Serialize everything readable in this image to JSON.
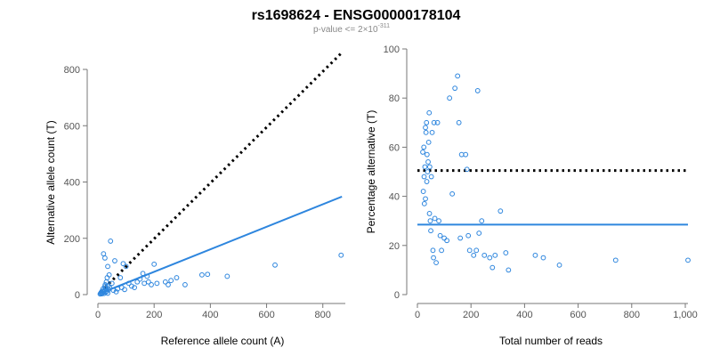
{
  "header": {
    "title": "rs1698624 - ENSG00000178104",
    "subtitle_prefix": "p-value <= 2×10",
    "subtitle_exponent": "-311"
  },
  "chart_data": [
    {
      "type": "scatter",
      "xlabel": "Reference allele count (A)",
      "ylabel": "Alternative allele count (T)",
      "xlim": [
        0,
        880
      ],
      "ylim": [
        0,
        800
      ],
      "xticks": [
        {
          "v": 0,
          "label": "0"
        },
        {
          "v": 200,
          "label": "200"
        },
        {
          "v": 400,
          "label": "400"
        },
        {
          "v": 600,
          "label": "600"
        },
        {
          "v": 800,
          "label": "800"
        }
      ],
      "yticks": [
        {
          "v": 0,
          "label": "0"
        },
        {
          "v": 200,
          "label": "200"
        },
        {
          "v": 400,
          "label": "400"
        },
        {
          "v": 600,
          "label": "600"
        },
        {
          "v": 800,
          "label": "800"
        }
      ],
      "grid": false,
      "colors": {
        "points": "#2e86de",
        "fit": "#2e86de",
        "reference": "#000000"
      },
      "reference_line": {
        "style": "dotted",
        "x": [
          10,
          868
        ],
        "y": [
          10,
          860
        ]
      },
      "fit_line": {
        "style": "solid",
        "x": [
          10,
          868
        ],
        "y": [
          5,
          348
        ]
      },
      "points": [
        {
          "x": 8,
          "y": 2
        },
        {
          "x": 10,
          "y": 5
        },
        {
          "x": 12,
          "y": 8
        },
        {
          "x": 14,
          "y": 3
        },
        {
          "x": 15,
          "y": 12
        },
        {
          "x": 16,
          "y": 6
        },
        {
          "x": 18,
          "y": 20
        },
        {
          "x": 20,
          "y": 10
        },
        {
          "x": 22,
          "y": 4
        },
        {
          "x": 24,
          "y": 28
        },
        {
          "x": 25,
          "y": 15
        },
        {
          "x": 26,
          "y": 35
        },
        {
          "x": 27,
          "y": 8
        },
        {
          "x": 28,
          "y": 22
        },
        {
          "x": 30,
          "y": 45
        },
        {
          "x": 32,
          "y": 12
        },
        {
          "x": 33,
          "y": 60
        },
        {
          "x": 35,
          "y": 5
        },
        {
          "x": 36,
          "y": 30
        },
        {
          "x": 38,
          "y": 18
        },
        {
          "x": 40,
          "y": 70
        },
        {
          "x": 42,
          "y": 25
        },
        {
          "x": 20,
          "y": 145
        },
        {
          "x": 25,
          "y": 130
        },
        {
          "x": 35,
          "y": 100
        },
        {
          "x": 45,
          "y": 190
        },
        {
          "x": 60,
          "y": 120
        },
        {
          "x": 90,
          "y": 110
        },
        {
          "x": 100,
          "y": 100
        },
        {
          "x": 50,
          "y": 40
        },
        {
          "x": 55,
          "y": 15
        },
        {
          "x": 65,
          "y": 10
        },
        {
          "x": 70,
          "y": 20
        },
        {
          "x": 80,
          "y": 60
        },
        {
          "x": 85,
          "y": 25
        },
        {
          "x": 95,
          "y": 18
        },
        {
          "x": 110,
          "y": 40
        },
        {
          "x": 120,
          "y": 30
        },
        {
          "x": 130,
          "y": 25
        },
        {
          "x": 140,
          "y": 45
        },
        {
          "x": 150,
          "y": 55
        },
        {
          "x": 160,
          "y": 75
        },
        {
          "x": 165,
          "y": 40
        },
        {
          "x": 175,
          "y": 65
        },
        {
          "x": 180,
          "y": 45
        },
        {
          "x": 190,
          "y": 35
        },
        {
          "x": 200,
          "y": 108
        },
        {
          "x": 210,
          "y": 40
        },
        {
          "x": 240,
          "y": 45
        },
        {
          "x": 250,
          "y": 35
        },
        {
          "x": 260,
          "y": 50
        },
        {
          "x": 280,
          "y": 60
        },
        {
          "x": 310,
          "y": 35
        },
        {
          "x": 370,
          "y": 70
        },
        {
          "x": 390,
          "y": 72
        },
        {
          "x": 460,
          "y": 65
        },
        {
          "x": 630,
          "y": 105
        },
        {
          "x": 865,
          "y": 140
        }
      ]
    },
    {
      "type": "scatter",
      "xlabel": "Total number of reads",
      "ylabel": "Percentage alternative (T)",
      "xlim": [
        0,
        1010
      ],
      "ylim": [
        0,
        100
      ],
      "xticks": [
        {
          "v": 0,
          "label": "0"
        },
        {
          "v": 200,
          "label": "200"
        },
        {
          "v": 400,
          "label": "400"
        },
        {
          "v": 600,
          "label": "600"
        },
        {
          "v": 800,
          "label": "800"
        },
        {
          "v": 1000,
          "label": "1,000"
        }
      ],
      "yticks": [
        {
          "v": 0,
          "label": "0"
        },
        {
          "v": 20,
          "label": "20"
        },
        {
          "v": 40,
          "label": "40"
        },
        {
          "v": 60,
          "label": "60"
        },
        {
          "v": 80,
          "label": "80"
        },
        {
          "v": 100,
          "label": "100"
        }
      ],
      "grid": false,
      "colors": {
        "points": "#2e86de",
        "fit": "#2e86de",
        "reference": "#000000"
      },
      "reference_line": {
        "style": "dotted",
        "x": [
          0,
          1010
        ],
        "y": [
          50.5,
          50.5
        ]
      },
      "fit_line": {
        "style": "solid",
        "x": [
          0,
          1010
        ],
        "y": [
          28.5,
          28.5
        ]
      },
      "points": [
        {
          "x": 20,
          "y": 58
        },
        {
          "x": 22,
          "y": 42
        },
        {
          "x": 24,
          "y": 60
        },
        {
          "x": 25,
          "y": 48
        },
        {
          "x": 26,
          "y": 37
        },
        {
          "x": 28,
          "y": 52
        },
        {
          "x": 30,
          "y": 68
        },
        {
          "x": 30,
          "y": 39
        },
        {
          "x": 32,
          "y": 66
        },
        {
          "x": 34,
          "y": 70
        },
        {
          "x": 35,
          "y": 46
        },
        {
          "x": 36,
          "y": 57
        },
        {
          "x": 38,
          "y": 50
        },
        {
          "x": 40,
          "y": 54
        },
        {
          "x": 42,
          "y": 62
        },
        {
          "x": 44,
          "y": 74
        },
        {
          "x": 45,
          "y": 33
        },
        {
          "x": 46,
          "y": 52
        },
        {
          "x": 48,
          "y": 30
        },
        {
          "x": 50,
          "y": 26
        },
        {
          "x": 52,
          "y": 48
        },
        {
          "x": 55,
          "y": 66
        },
        {
          "x": 58,
          "y": 18
        },
        {
          "x": 60,
          "y": 15
        },
        {
          "x": 62,
          "y": 70
        },
        {
          "x": 65,
          "y": 31
        },
        {
          "x": 70,
          "y": 13
        },
        {
          "x": 75,
          "y": 70
        },
        {
          "x": 80,
          "y": 30
        },
        {
          "x": 85,
          "y": 24
        },
        {
          "x": 90,
          "y": 18
        },
        {
          "x": 100,
          "y": 23
        },
        {
          "x": 110,
          "y": 22
        },
        {
          "x": 120,
          "y": 80
        },
        {
          "x": 130,
          "y": 41
        },
        {
          "x": 140,
          "y": 84
        },
        {
          "x": 150,
          "y": 89
        },
        {
          "x": 155,
          "y": 70
        },
        {
          "x": 160,
          "y": 23
        },
        {
          "x": 165,
          "y": 57
        },
        {
          "x": 180,
          "y": 57
        },
        {
          "x": 185,
          "y": 51
        },
        {
          "x": 190,
          "y": 24
        },
        {
          "x": 195,
          "y": 18
        },
        {
          "x": 210,
          "y": 16
        },
        {
          "x": 220,
          "y": 18
        },
        {
          "x": 225,
          "y": 83
        },
        {
          "x": 230,
          "y": 25
        },
        {
          "x": 240,
          "y": 30
        },
        {
          "x": 250,
          "y": 16
        },
        {
          "x": 270,
          "y": 15
        },
        {
          "x": 280,
          "y": 11
        },
        {
          "x": 290,
          "y": 16
        },
        {
          "x": 310,
          "y": 34
        },
        {
          "x": 330,
          "y": 17
        },
        {
          "x": 340,
          "y": 10
        },
        {
          "x": 440,
          "y": 16
        },
        {
          "x": 470,
          "y": 15
        },
        {
          "x": 530,
          "y": 12
        },
        {
          "x": 740,
          "y": 14
        },
        {
          "x": 1010,
          "y": 14
        }
      ]
    }
  ]
}
